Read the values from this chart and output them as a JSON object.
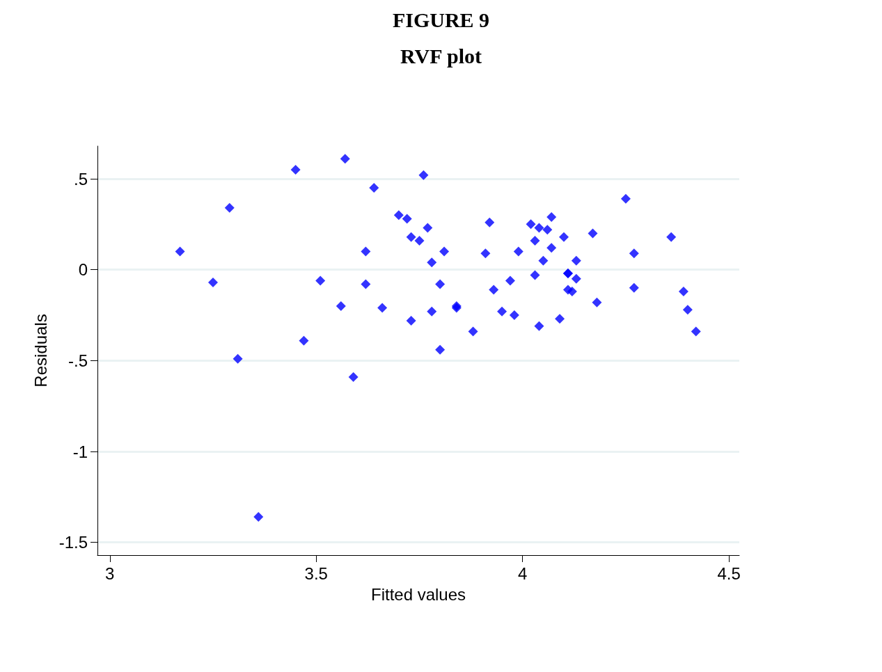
{
  "chart_data": {
    "type": "scatter",
    "title": "FIGURE 9",
    "subtitle": "RVF plot",
    "xlabel": "Fitted values",
    "ylabel": "Residuals",
    "x": [
      3.17,
      3.25,
      3.29,
      3.31,
      3.36,
      3.45,
      3.47,
      3.51,
      3.56,
      3.57,
      3.59,
      3.62,
      3.62,
      3.64,
      3.66,
      3.7,
      3.72,
      3.73,
      3.73,
      3.76,
      3.75,
      3.77,
      3.78,
      3.78,
      3.8,
      3.8,
      3.81,
      3.84,
      3.84,
      3.88,
      3.91,
      3.92,
      3.93,
      3.95,
      3.97,
      3.98,
      3.99,
      4.02,
      4.03,
      4.03,
      4.04,
      4.04,
      4.05,
      4.06,
      4.07,
      4.07,
      4.09,
      4.1,
      4.11,
      4.11,
      4.11,
      4.13,
      4.12,
      4.13,
      4.17,
      4.18,
      4.25,
      4.27,
      4.27,
      4.36,
      4.39,
      4.4,
      4.42
    ],
    "values": [
      0.1,
      -0.07,
      0.34,
      -0.49,
      -1.36,
      0.55,
      -0.39,
      -0.06,
      -0.2,
      0.61,
      -0.59,
      0.1,
      -0.08,
      0.45,
      -0.21,
      0.3,
      0.28,
      -0.28,
      0.18,
      0.52,
      0.16,
      0.23,
      -0.23,
      0.04,
      -0.44,
      -0.08,
      0.1,
      -0.2,
      -0.21,
      -0.34,
      0.09,
      0.26,
      -0.11,
      -0.23,
      -0.06,
      -0.25,
      0.1,
      0.25,
      -0.03,
      0.16,
      -0.31,
      0.23,
      0.05,
      0.22,
      0.12,
      0.29,
      -0.27,
      0.18,
      -0.02,
      -0.02,
      -0.11,
      0.05,
      -0.12,
      -0.05,
      0.2,
      -0.18,
      0.39,
      0.09,
      -0.1,
      0.18,
      -0.12,
      -0.22,
      -0.34
    ],
    "color": "#0000ff",
    "marker": "diamond",
    "grid": "y",
    "xlim": [
      2.97,
      4.525
    ],
    "xticks": [
      3,
      3.5,
      4,
      4.5
    ],
    "ylim": [
      -1.57,
      0.68
    ],
    "yticks": [
      -1.5,
      -1,
      {
        "value": -0.5,
        "label": "-.5"
      },
      0,
      {
        "value": 0.5,
        "label": ".5"
      }
    ]
  }
}
